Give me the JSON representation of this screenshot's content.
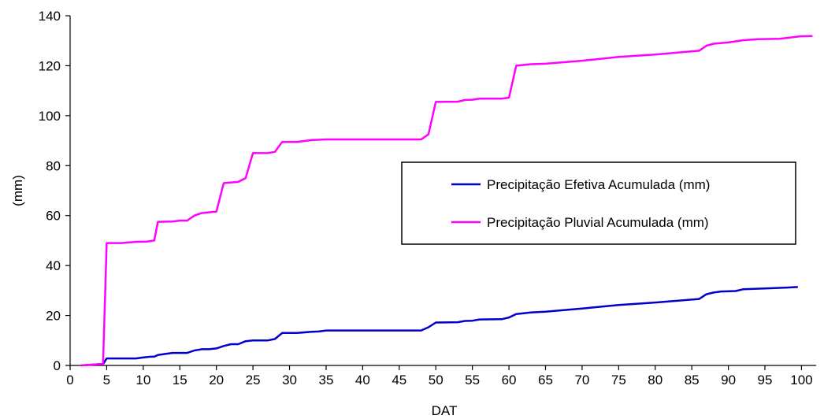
{
  "chart_data": {
    "type": "line",
    "xlabel": "DAT",
    "ylabel": "(mm)",
    "xlim": [
      0,
      102
    ],
    "ylim": [
      0,
      140
    ],
    "x_ticks": [
      0,
      5,
      10,
      15,
      20,
      25,
      30,
      35,
      40,
      45,
      50,
      55,
      60,
      65,
      70,
      75,
      80,
      85,
      90,
      95,
      100
    ],
    "y_ticks": [
      0,
      20,
      40,
      60,
      80,
      100,
      120,
      140
    ],
    "grid": false,
    "legend_position": "center-right",
    "series": [
      {
        "name": "Precipitação Efetiva Acumulada (mm)",
        "color": "#0000cc",
        "points": [
          [
            1.5,
            0
          ],
          [
            4,
            0.5
          ],
          [
            4.5,
            0.5
          ],
          [
            5,
            2.8
          ],
          [
            6,
            2.8
          ],
          [
            8,
            2.8
          ],
          [
            9,
            2.8
          ],
          [
            10,
            3.2
          ],
          [
            11,
            3.5
          ],
          [
            11.5,
            3.5
          ],
          [
            12,
            4.2
          ],
          [
            13,
            4.6
          ],
          [
            14,
            5
          ],
          [
            16,
            5
          ],
          [
            17,
            6
          ],
          [
            18,
            6.5
          ],
          [
            19,
            6.5
          ],
          [
            20,
            6.8
          ],
          [
            21,
            7.8
          ],
          [
            22,
            8.5
          ],
          [
            23,
            8.5
          ],
          [
            24,
            9.7
          ],
          [
            25,
            10
          ],
          [
            27,
            10
          ],
          [
            28,
            10.6
          ],
          [
            29,
            13
          ],
          [
            31,
            13
          ],
          [
            33,
            13.5
          ],
          [
            34,
            13.6
          ],
          [
            35,
            14
          ],
          [
            48,
            14
          ],
          [
            49,
            15.3
          ],
          [
            50,
            17.2
          ],
          [
            53,
            17.3
          ],
          [
            54,
            17.8
          ],
          [
            55,
            17.9
          ],
          [
            56,
            18.4
          ],
          [
            59,
            18.5
          ],
          [
            60,
            19.2
          ],
          [
            61,
            20.6
          ],
          [
            63,
            21.2
          ],
          [
            65,
            21.5
          ],
          [
            70,
            22.8
          ],
          [
            75,
            24.2
          ],
          [
            80,
            25.2
          ],
          [
            86,
            26.6
          ],
          [
            87,
            28.5
          ],
          [
            88,
            29.2
          ],
          [
            89,
            29.6
          ],
          [
            91,
            29.8
          ],
          [
            92,
            30.5
          ],
          [
            95,
            30.8
          ],
          [
            98,
            31.2
          ],
          [
            99.5,
            31.4
          ]
        ]
      },
      {
        "name": "Precipitação Pluvial Acumulada (mm)",
        "color": "#ff00ff",
        "points": [
          [
            1.5,
            0
          ],
          [
            4,
            0.5
          ],
          [
            4.5,
            0.5
          ],
          [
            5,
            49
          ],
          [
            7,
            49
          ],
          [
            9,
            49.5
          ],
          [
            10.5,
            49.6
          ],
          [
            11.5,
            50
          ],
          [
            12,
            57.5
          ],
          [
            14,
            57.6
          ],
          [
            15,
            58
          ],
          [
            16,
            58
          ],
          [
            17,
            60
          ],
          [
            18,
            61
          ],
          [
            20,
            61.6
          ],
          [
            21,
            73
          ],
          [
            23,
            73.5
          ],
          [
            24,
            75
          ],
          [
            25,
            85
          ],
          [
            27,
            85
          ],
          [
            28,
            85.5
          ],
          [
            29,
            89.5
          ],
          [
            31,
            89.5
          ],
          [
            33,
            90.2
          ],
          [
            35,
            90.5
          ],
          [
            48,
            90.5
          ],
          [
            49,
            92.5
          ],
          [
            50,
            105.5
          ],
          [
            53,
            105.6
          ],
          [
            54,
            106.3
          ],
          [
            55,
            106.4
          ],
          [
            56,
            106.8
          ],
          [
            59,
            106.8
          ],
          [
            60,
            107.2
          ],
          [
            61,
            120
          ],
          [
            63,
            120.6
          ],
          [
            65,
            120.8
          ],
          [
            70,
            122
          ],
          [
            75,
            123.5
          ],
          [
            80,
            124.5
          ],
          [
            86,
            126
          ],
          [
            87,
            128
          ],
          [
            88,
            128.8
          ],
          [
            90,
            129.3
          ],
          [
            92,
            130.2
          ],
          [
            94,
            130.6
          ],
          [
            97,
            130.8
          ],
          [
            100,
            131.8
          ],
          [
            101.5,
            131.9
          ]
        ]
      }
    ]
  }
}
